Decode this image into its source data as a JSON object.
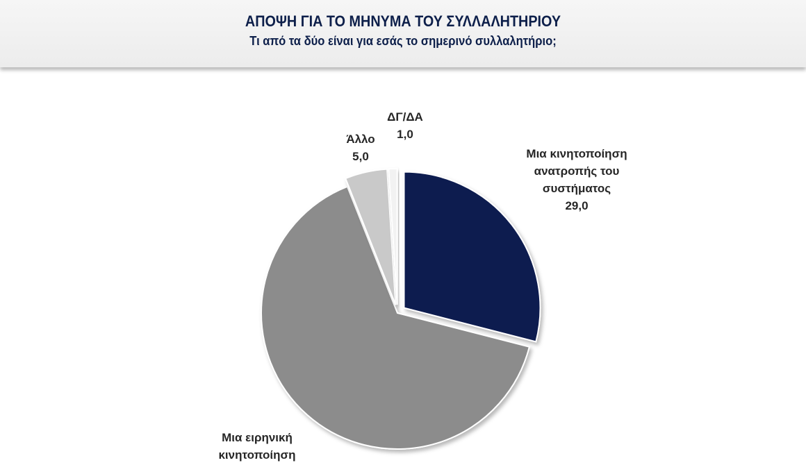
{
  "header": {
    "title": "ΑΠΟΨΗ ΓΙΑ ΤΟ ΜΗΝΥΜΑ ΤΟΥ ΣΥΛΛΑΛΗΤΗΡΙΟΥ",
    "subtitle": "Τι από τα δύο είναι για εσάς το σημερινό συλλαλητήριο;"
  },
  "chart_data": {
    "type": "pie",
    "title": "ΑΠΟΨΗ ΓΙΑ ΤΟ ΜΗΝΥΜΑ ΤΟΥ ΣΥΛΛΑΛΗΤΗΡΙΟΥ",
    "subtitle": "Τι από τα δύο είναι για εσάς το σημερινό συλλαλητήριο;",
    "slices": [
      {
        "label": "Μια κινητοποίηση ανατροπής του συστήματος",
        "label_lines": [
          "Μια κινητοποίηση",
          "ανατροπής του",
          "συστήματος"
        ],
        "value": 29.0,
        "value_text": "29,0",
        "color": "#0f1a4f",
        "exploded": true
      },
      {
        "label": "Μια ειρηνική κινητοποίηση",
        "label_lines": [
          "Μια ειρηνική",
          "κινητοποίηση"
        ],
        "value": 65.0,
        "value_text": "",
        "color": "#8c8c8c",
        "exploded": false
      },
      {
        "label": "Άλλο",
        "label_lines": [
          "Άλλο"
        ],
        "value": 5.0,
        "value_text": "5,0",
        "color": "#c9c9c9",
        "exploded": true
      },
      {
        "label": "ΔΓ/ΔΑ",
        "label_lines": [
          "ΔΓ/ΔΑ"
        ],
        "value": 1.0,
        "value_text": "1,0",
        "color": "#f2f2f2",
        "exploded": true
      }
    ]
  }
}
